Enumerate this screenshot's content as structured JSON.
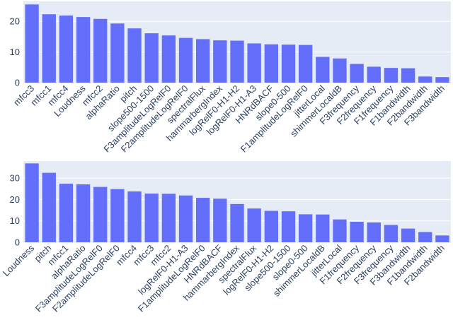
{
  "colors": {
    "bar": "#636efa",
    "plot_bg": "#e5ecf6",
    "grid": "#ffffff",
    "text": "#2a3f5f"
  },
  "chart_data": [
    {
      "type": "bar",
      "title": "",
      "xlabel": "",
      "ylabel": "",
      "ylim": [
        0,
        26.5
      ],
      "yticks": [
        0,
        10,
        20
      ],
      "grid": true,
      "categories": [
        "mfcc3",
        "mfcc1",
        "mfcc4",
        "Loudness",
        "mfcc2",
        "alphaRatio",
        "pitch",
        "slope500-1500",
        "F3amplitudeLogRelF0",
        "F2amplitudeLogRelF0",
        "spectralFlux",
        "hammarbergIndex",
        "logRelF0-H1-H2",
        "logRelF0-H1-A3",
        "HNRdBACF",
        "slope0-500",
        "F1amplitudeLogRelF0",
        "jitterLocal",
        "shimmerLocaldB",
        "F3frequency",
        "F2frequency",
        "F1frequency",
        "F1bandwidth",
        "F2bandwidth",
        "F3bandwidth"
      ],
      "values": [
        25.5,
        22.3,
        21.9,
        21.4,
        20.8,
        19.3,
        17.7,
        16.1,
        15.4,
        14.6,
        14.2,
        13.8,
        13.7,
        12.8,
        12.5,
        12.4,
        12.3,
        8.4,
        7.9,
        6.1,
        5.2,
        4.8,
        4.7,
        2.0,
        1.8
      ]
    },
    {
      "type": "bar",
      "title": "",
      "xlabel": "",
      "ylabel": "",
      "ylim": [
        0,
        38
      ],
      "yticks": [
        0,
        10,
        20,
        30
      ],
      "grid": true,
      "categories": [
        "Loudness",
        "pitch",
        "mfcc1",
        "alphaRatio",
        "F3amplitudeLogRelF0",
        "F2amplitudeLogRelF0",
        "mfcc4",
        "mfcc3",
        "mfcc2",
        "logRelF0-H1-A3",
        "F1amplitudeLogRelF0",
        "HNRdBACF",
        "hammarbergIndex",
        "spectralFlux",
        "logRelF0-H1-H2",
        "slope500-1500",
        "slope0-500",
        "shimmerLocaldB",
        "jitterLocal",
        "F1frequency",
        "F2frequency",
        "F3frequency",
        "F3bandwidth",
        "F1bandwidth",
        "F2bandwidth"
      ],
      "values": [
        36.9,
        32.5,
        27.4,
        27.1,
        25.9,
        24.9,
        23.8,
        22.8,
        22.7,
        21.9,
        20.8,
        20.4,
        17.9,
        15.8,
        14.7,
        14.5,
        13.1,
        13.0,
        10.7,
        9.6,
        9.3,
        8.1,
        6.4,
        4.8,
        3.2
      ]
    }
  ]
}
